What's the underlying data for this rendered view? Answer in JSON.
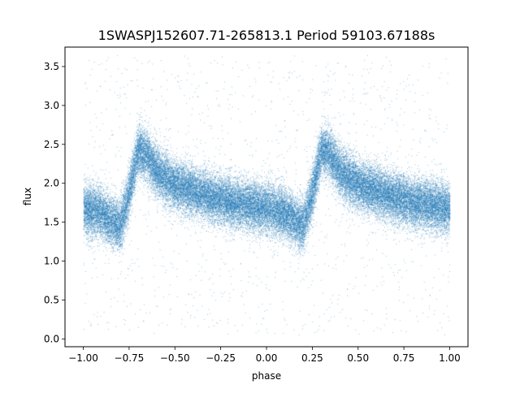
{
  "chart_data": {
    "type": "scatter",
    "title": "1SWASPJ152607.71-265813.1 Period 59103.67188s",
    "xlabel": "phase",
    "ylabel": "flux",
    "xlim": [
      -1.1,
      1.1
    ],
    "ylim": [
      -0.1,
      3.75
    ],
    "xticks": [
      -1.0,
      -0.75,
      -0.5,
      -0.25,
      0.0,
      0.25,
      0.5,
      0.75,
      1.0
    ],
    "xtick_labels": [
      "−1.00",
      "−0.75",
      "−0.50",
      "−0.25",
      "0.00",
      "0.25",
      "0.50",
      "0.75",
      "1.00"
    ],
    "yticks": [
      0.0,
      0.5,
      1.0,
      1.5,
      2.0,
      2.5,
      3.0,
      3.5
    ],
    "ytick_labels": [
      "0.0",
      "0.5",
      "1.0",
      "1.5",
      "2.0",
      "2.5",
      "3.0",
      "3.5"
    ],
    "grid": false,
    "marker_color": "#1f77b4",
    "phase_range": [
      -1.0,
      1.0
    ],
    "light_curve_profile": {
      "phase": [
        0.0,
        0.1,
        0.15,
        0.2,
        0.25,
        0.3,
        0.35,
        0.4,
        0.5,
        0.6,
        0.7,
        0.8,
        0.9,
        1.0
      ],
      "flux": [
        1.68,
        1.62,
        1.52,
        1.45,
        1.9,
        2.45,
        2.35,
        2.15,
        1.98,
        1.9,
        1.82,
        1.76,
        1.72,
        1.68
      ]
    },
    "scatter_sigma": 0.16,
    "outlier_flux_range": [
      0.05,
      3.65
    ],
    "n_points": 45000
  }
}
